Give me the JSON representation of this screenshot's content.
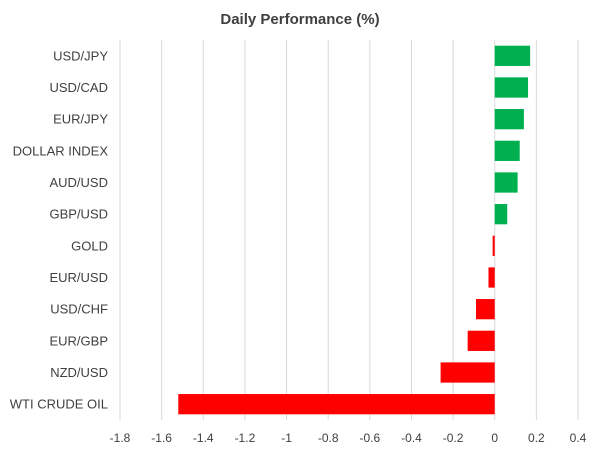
{
  "chart_data": {
    "type": "bar",
    "orientation": "horizontal",
    "title": "Daily Performance (%)",
    "xlabel": "",
    "ylabel": "",
    "categories": [
      "USD/JPY",
      "USD/CAD",
      "EUR/JPY",
      "DOLLAR INDEX",
      "AUD/USD",
      "GBP/USD",
      "GOLD",
      "EUR/USD",
      "USD/CHF",
      "EUR/GBP",
      "NZD/USD",
      "WTI CRUDE OIL"
    ],
    "values": [
      0.17,
      0.16,
      0.14,
      0.12,
      0.11,
      0.06,
      -0.01,
      -0.03,
      -0.09,
      -0.13,
      -0.26,
      -1.52
    ],
    "xlim": [
      -1.8,
      0.4
    ],
    "xticks": [
      "-1.8",
      "-1.6",
      "-1.4",
      "-1.2",
      "-1",
      "-0.8",
      "-0.6",
      "-0.4",
      "-0.2",
      "0",
      "0.2",
      "0.4"
    ],
    "grid": "vertical",
    "legend": "none",
    "colors": {
      "positive": "#00b050",
      "negative": "#ff0000",
      "grid": "#d9d9d9",
      "text": "#404040"
    }
  }
}
